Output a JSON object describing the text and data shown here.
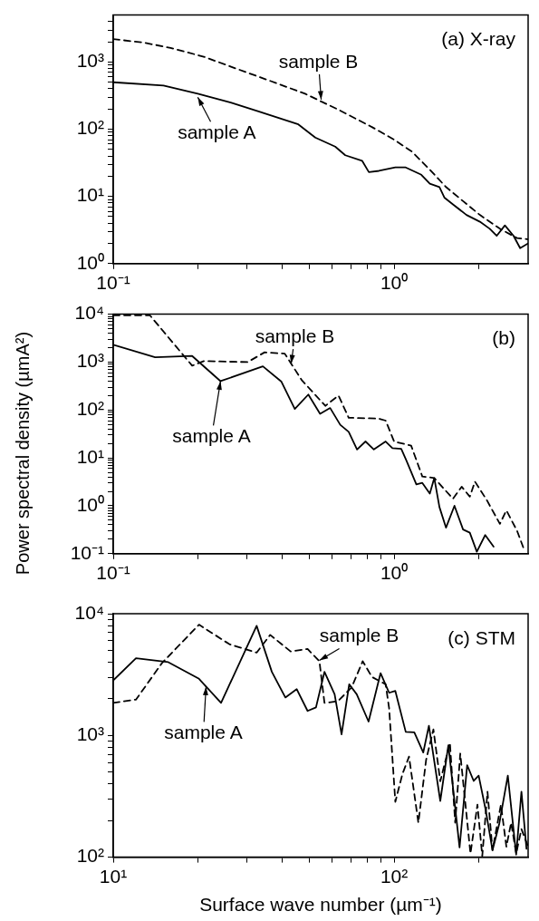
{
  "chart_data": [
    {
      "type": "line",
      "title": "(a) X-ray",
      "log": "xy",
      "grid": false,
      "legend": false,
      "marker": "none",
      "xlim": [
        0.1,
        3
      ],
      "xticks": [
        {
          "value": 0.1,
          "label": "10⁻¹"
        },
        {
          "value": 0.2,
          "label": null
        },
        {
          "value": 0.3,
          "label": null
        },
        {
          "value": 0.4,
          "label": null
        },
        {
          "value": 0.5,
          "label": null
        },
        {
          "value": 0.6,
          "label": null
        },
        {
          "value": 0.7,
          "label": null
        },
        {
          "value": 0.8,
          "label": null
        },
        {
          "value": 0.9,
          "label": null
        },
        {
          "value": 1,
          "label": "10⁰"
        },
        {
          "value": 2,
          "label": null
        }
      ],
      "ylim": [
        1,
        5000
      ],
      "yticks": [
        {
          "value": 1,
          "label": "10⁰"
        },
        {
          "value": 2,
          "label": null
        },
        {
          "value": 3,
          "label": null
        },
        {
          "value": 4,
          "label": null
        },
        {
          "value": 5,
          "label": null
        },
        {
          "value": 6,
          "label": null
        },
        {
          "value": 7,
          "label": null
        },
        {
          "value": 8,
          "label": null
        },
        {
          "value": 9,
          "label": null
        },
        {
          "value": 10,
          "label": "10¹"
        },
        {
          "value": 20,
          "label": null
        },
        {
          "value": 30,
          "label": null
        },
        {
          "value": 40,
          "label": null
        },
        {
          "value": 50,
          "label": null
        },
        {
          "value": 60,
          "label": null
        },
        {
          "value": 70,
          "label": null
        },
        {
          "value": 80,
          "label": null
        },
        {
          "value": 90,
          "label": null
        },
        {
          "value": 100,
          "label": "10²"
        },
        {
          "value": 200,
          "label": null
        },
        {
          "value": 300,
          "label": null
        },
        {
          "value": 400,
          "label": null
        },
        {
          "value": 500,
          "label": null
        },
        {
          "value": 600,
          "label": null
        },
        {
          "value": 700,
          "label": null
        },
        {
          "value": 800,
          "label": null
        },
        {
          "value": 900,
          "label": null
        },
        {
          "value": 1000,
          "label": "10³"
        },
        {
          "value": 2000,
          "label": null
        },
        {
          "value": 3000,
          "label": null
        },
        {
          "value": 4000,
          "label": null
        }
      ],
      "series": [
        {
          "color": "#000000",
          "line_style": "solid",
          "x": [
            0.1,
            0.151,
            0.2,
            0.262,
            0.327,
            0.456,
            0.524,
            0.617,
            0.67,
            0.769,
            0.813,
            0.883,
            1.01,
            1.1,
            1.25,
            1.34,
            1.45,
            1.51,
            1.62,
            1.81,
            2.02,
            2.19,
            2.32,
            2.48,
            2.66,
            2.81,
            3.0
          ],
          "values": [
            500,
            447,
            337,
            250,
            186,
            118,
            75,
            55,
            41,
            34,
            23,
            24,
            27,
            27,
            21,
            15.5,
            13.8,
            9.6,
            7.6,
            5.3,
            4.2,
            3.3,
            2.6,
            3.7,
            2.6,
            1.7,
            2.0
          ]
        },
        {
          "color": "#000000",
          "line_style": "dashed",
          "x": [
            0.1,
            0.128,
            0.16,
            0.21,
            0.277,
            0.366,
            0.482,
            0.634,
            0.836,
            1.0,
            1.16,
            1.34,
            1.53,
            1.76,
            2.02,
            2.38,
            2.74,
            3.0
          ],
          "values": [
            2190,
            1950,
            1620,
            1200,
            785,
            515,
            337,
            195,
            107,
            70,
            46,
            25,
            13.8,
            8.5,
            5.3,
            3.3,
            2.4,
            2.3
          ]
        }
      ],
      "annotations": [
        {
          "text": "sample A",
          "x": 0.2,
          "y": 300
        },
        {
          "text": "sample B",
          "x": 0.55,
          "y": 275
        }
      ]
    },
    {
      "type": "line",
      "title": "(b)",
      "ylabel": "Power spectral density (µmA²)",
      "log": "xy",
      "grid": false,
      "legend": false,
      "marker": "none",
      "xlim": [
        0.1,
        3
      ],
      "xticks": [
        {
          "value": 0.1,
          "label": "10⁻¹"
        },
        {
          "value": 0.2,
          "label": null
        },
        {
          "value": 0.3,
          "label": null
        },
        {
          "value": 0.4,
          "label": null
        },
        {
          "value": 0.5,
          "label": null
        },
        {
          "value": 0.6,
          "label": null
        },
        {
          "value": 0.7,
          "label": null
        },
        {
          "value": 0.8,
          "label": null
        },
        {
          "value": 0.9,
          "label": null
        },
        {
          "value": 1,
          "label": "10⁰"
        },
        {
          "value": 2,
          "label": null
        }
      ],
      "ylim": [
        0.1,
        10000
      ],
      "yticks": [
        {
          "value": 0.1,
          "label": "10⁻¹"
        },
        {
          "value": 0.2,
          "label": null
        },
        {
          "value": 0.3,
          "label": null
        },
        {
          "value": 0.4,
          "label": null
        },
        {
          "value": 0.5,
          "label": null
        },
        {
          "value": 0.6,
          "label": null
        },
        {
          "value": 0.7,
          "label": null
        },
        {
          "value": 0.8,
          "label": null
        },
        {
          "value": 0.9,
          "label": null
        },
        {
          "value": 1,
          "label": "10⁰"
        },
        {
          "value": 2,
          "label": null
        },
        {
          "value": 3,
          "label": null
        },
        {
          "value": 4,
          "label": null
        },
        {
          "value": 5,
          "label": null
        },
        {
          "value": 6,
          "label": null
        },
        {
          "value": 7,
          "label": null
        },
        {
          "value": 8,
          "label": null
        },
        {
          "value": 9,
          "label": null
        },
        {
          "value": 10,
          "label": "10¹"
        },
        {
          "value": 20,
          "label": null
        },
        {
          "value": 30,
          "label": null
        },
        {
          "value": 40,
          "label": null
        },
        {
          "value": 50,
          "label": null
        },
        {
          "value": 60,
          "label": null
        },
        {
          "value": 70,
          "label": null
        },
        {
          "value": 80,
          "label": null
        },
        {
          "value": 90,
          "label": null
        },
        {
          "value": 100,
          "label": "10²"
        },
        {
          "value": 200,
          "label": null
        },
        {
          "value": 300,
          "label": null
        },
        {
          "value": 400,
          "label": null
        },
        {
          "value": 500,
          "label": null
        },
        {
          "value": 600,
          "label": null
        },
        {
          "value": 700,
          "label": null
        },
        {
          "value": 800,
          "label": null
        },
        {
          "value": 900,
          "label": null
        },
        {
          "value": 1000,
          "label": "10³"
        },
        {
          "value": 2000,
          "label": null
        },
        {
          "value": 3000,
          "label": null
        },
        {
          "value": 4000,
          "label": null
        },
        {
          "value": 5000,
          "label": null
        },
        {
          "value": 6000,
          "label": null
        },
        {
          "value": 7000,
          "label": null
        },
        {
          "value": 8000,
          "label": null
        },
        {
          "value": 9000,
          "label": null
        },
        {
          "value": 10000,
          "label": "10⁴"
        }
      ],
      "series": [
        {
          "color": "#000000",
          "line_style": "solid",
          "x": [
            0.1,
            0.141,
            0.191,
            0.241,
            0.341,
            0.397,
            0.443,
            0.495,
            0.545,
            0.592,
            0.643,
            0.689,
            0.738,
            0.791,
            0.847,
            0.933,
            0.986,
            1.06,
            1.1,
            1.2,
            1.26,
            1.34,
            1.39,
            1.45,
            1.53,
            1.64,
            1.76,
            1.86,
            1.97,
            2.11,
            2.26
          ],
          "values": [
            2300,
            1260,
            1340,
            400,
            815,
            390,
            105,
            210,
            83,
            110,
            49,
            35,
            15,
            22,
            15,
            22,
            16,
            15.5,
            9.5,
            2.8,
            3.0,
            1.8,
            3.8,
            0.94,
            0.35,
            1.0,
            0.32,
            0.275,
            0.11,
            0.245,
            0.14
          ]
        },
        {
          "color": "#000000",
          "line_style": "dashed",
          "x": [
            0.1,
            0.135,
            0.191,
            0.21,
            0.301,
            0.346,
            0.408,
            0.469,
            0.569,
            0.634,
            0.689,
            0.883,
            0.933,
            1.0,
            1.15,
            1.26,
            1.39,
            1.62,
            1.74,
            1.86,
            1.94,
            2.14,
            2.38,
            2.51,
            2.74,
            2.89
          ],
          "values": [
            9500,
            9500,
            840,
            1050,
            1000,
            1600,
            1500,
            420,
            122,
            200,
            69,
            66,
            60,
            22,
            18,
            4.1,
            3.8,
            1.4,
            2.5,
            1.55,
            3.2,
            1.3,
            0.42,
            0.8,
            0.3,
            0.13
          ]
        }
      ],
      "annotations": [
        {
          "text": "sample A",
          "x": 0.241,
          "y": 400
        },
        {
          "text": "sample B",
          "x": 0.43,
          "y": 930
        }
      ]
    },
    {
      "type": "line",
      "title": "(c) STM",
      "xlabel": "Surface wave number (µm⁻¹)",
      "log": "xy",
      "grid": false,
      "legend": false,
      "marker": "none",
      "xlim": [
        10,
        300
      ],
      "xticks": [
        {
          "value": 10,
          "label": "10¹"
        },
        {
          "value": 20,
          "label": null
        },
        {
          "value": 30,
          "label": null
        },
        {
          "value": 40,
          "label": null
        },
        {
          "value": 50,
          "label": null
        },
        {
          "value": 60,
          "label": null
        },
        {
          "value": 70,
          "label": null
        },
        {
          "value": 80,
          "label": null
        },
        {
          "value": 90,
          "label": null
        },
        {
          "value": 100,
          "label": "10²"
        },
        {
          "value": 200,
          "label": null
        }
      ],
      "ylim": [
        100,
        10000
      ],
      "yticks": [
        {
          "value": 100,
          "label": "10²"
        },
        {
          "value": 200,
          "label": null
        },
        {
          "value": 300,
          "label": null
        },
        {
          "value": 400,
          "label": null
        },
        {
          "value": 500,
          "label": null
        },
        {
          "value": 600,
          "label": null
        },
        {
          "value": 700,
          "label": null
        },
        {
          "value": 800,
          "label": null
        },
        {
          "value": 900,
          "label": null
        },
        {
          "value": 1000,
          "label": "10³"
        },
        {
          "value": 2000,
          "label": null
        },
        {
          "value": 3000,
          "label": null
        },
        {
          "value": 4000,
          "label": null
        },
        {
          "value": 5000,
          "label": null
        },
        {
          "value": 6000,
          "label": null
        },
        {
          "value": 7000,
          "label": null
        },
        {
          "value": 8000,
          "label": null
        },
        {
          "value": 9000,
          "label": null
        },
        {
          "value": 10000,
          "label": "10⁴"
        }
      ],
      "series": [
        {
          "color": "#000000",
          "line_style": "solid",
          "x": [
            10,
            12.05,
            15.7,
            20.2,
            24.2,
            32.4,
            36.7,
            41,
            45,
            49.2,
            52.7,
            56.5,
            61.4,
            65,
            69.2,
            73.6,
            81.1,
            89.5,
            96,
            101,
            110,
            118,
            127,
            133,
            146,
            156,
            171,
            182,
            192,
            200,
            212,
            224,
            237,
            254,
            272,
            284,
            296
          ],
          "values": [
            2830,
            4300,
            4000,
            2920,
            1850,
            7950,
            3330,
            2050,
            2400,
            1590,
            1700,
            3330,
            2180,
            1020,
            2630,
            2180,
            1300,
            3250,
            2240,
            2320,
            1070,
            1060,
            725,
            1200,
            290,
            830,
            120,
            570,
            423,
            468,
            242,
            114,
            190,
            468,
            105,
            345,
            117
          ]
        },
        {
          "color": "#000000",
          "line_style": "dashed",
          "x": [
            10,
            12.05,
            14.9,
            20.2,
            25.9,
            32.4,
            36.2,
            42.8,
            49.2,
            54.2,
            56.5,
            63.1,
            70.6,
            77.3,
            83.4,
            93.3,
            96,
            101,
            107,
            113,
            122,
            130,
            138,
            146,
            158,
            165,
            172,
            187,
            198,
            206,
            215,
            224,
            240,
            251,
            261,
            272,
            284,
            300
          ],
          "values": [
            1850,
            1970,
            3920,
            8130,
            5620,
            4790,
            6700,
            4900,
            5130,
            4070,
            1850,
            1910,
            2480,
            4070,
            3020,
            2630,
            1670,
            285,
            480,
            670,
            192,
            630,
            1120,
            420,
            870,
            192,
            710,
            107,
            270,
            102,
            345,
            114,
            270,
            122,
            192,
            107,
            170,
            122
          ]
        }
      ],
      "annotations": [
        {
          "text": "sample A",
          "x": 21.4,
          "y": 2520
        },
        {
          "text": "sample B",
          "x": 54.2,
          "y": 4130
        }
      ]
    }
  ]
}
